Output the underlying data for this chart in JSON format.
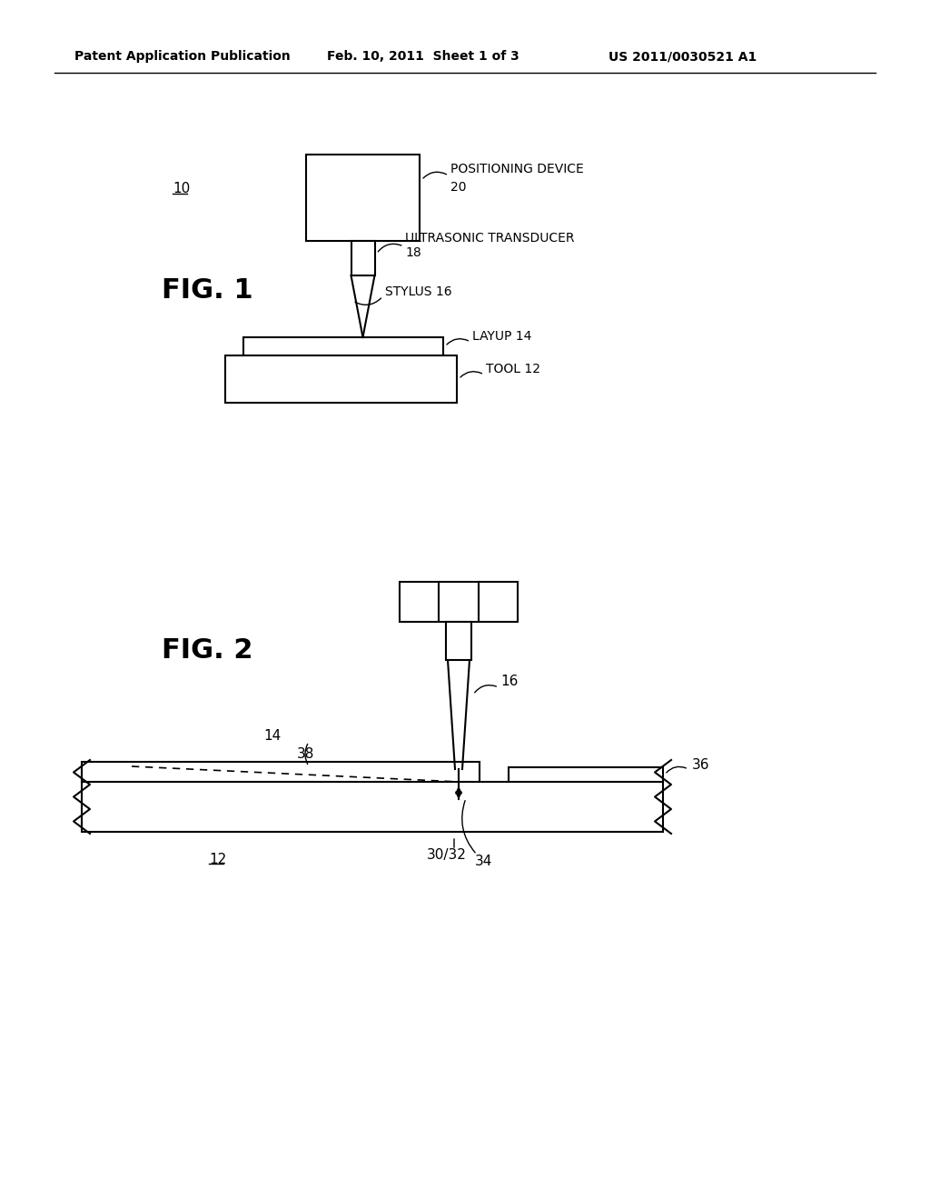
{
  "background_color": "#ffffff",
  "header_text": "Patent Application Publication",
  "header_date": "Feb. 10, 2011  Sheet 1 of 3",
  "header_patent": "US 2011/0030521 A1",
  "fig1_label": "FIG. 1",
  "fig2_label": "FIG. 2",
  "ref_10": "10",
  "ref_12_fig1": "TOOL 12",
  "ref_14_fig1": "LAYUP 14",
  "ref_16_fig1": "STYLUS 16",
  "ref_18_line1": "ULTRASONIC TRANSDUCER",
  "ref_18_line2": "18",
  "ref_20_line1": "POSITIONING DEVICE",
  "ref_20_line2": "20",
  "ref_12_fig2": "12",
  "ref_14_fig2": "14",
  "ref_16_fig2": "16",
  "ref_30_32": "30/32",
  "ref_34": "34",
  "ref_36": "36",
  "ref_38": "38"
}
